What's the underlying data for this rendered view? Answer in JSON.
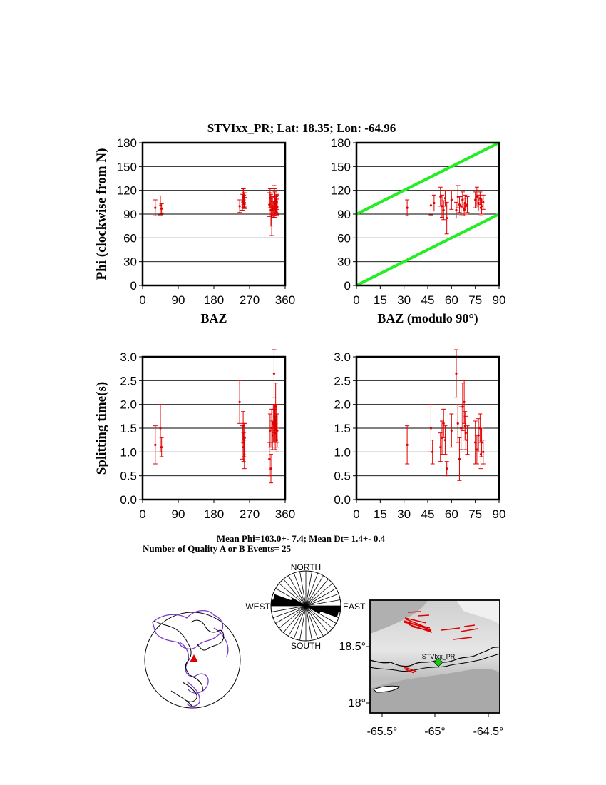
{
  "title": "STVIxx_PR; Lat:  18.35;  Lon:  -64.96",
  "stats_line1": "Mean Phi=103.0+-  7.4; Mean Dt=  1.4+-  0.4",
  "stats_line2": "Number of Quality A or B Events= 25",
  "colors": {
    "data": "#e00000",
    "guide": "#22ee22",
    "station": "#11cc11",
    "grid": "#000000",
    "globe_outline": "#7a3cc8"
  },
  "chart_data": [
    {
      "id": "phi-vs-baz",
      "type": "scatter",
      "ylabel": "Phi (clockwise from N)",
      "xlabel": "BAZ",
      "xlim": [
        0,
        360
      ],
      "ylim": [
        0,
        180
      ],
      "xticks": [
        "0",
        "90",
        "180",
        "270",
        "360"
      ],
      "yticks": [
        "0",
        "30",
        "60",
        "90",
        "120",
        "150",
        "180"
      ],
      "grid": "horizontal",
      "x": [
        32,
        45,
        48,
        245,
        252,
        254,
        255,
        256,
        257,
        258,
        320,
        322,
        324,
        326,
        328,
        330,
        332,
        333,
        334,
        335,
        336,
        337,
        338,
        339,
        340
      ],
      "y": [
        98,
        101,
        97,
        100,
        105,
        110,
        112,
        106,
        108,
        104,
        102,
        110,
        95,
        88,
        100,
        96,
        112,
        104,
        108,
        100,
        98,
        102,
        103,
        105,
        99
      ],
      "err": [
        10,
        12,
        6,
        8,
        10,
        12,
        10,
        8,
        9,
        7,
        15,
        12,
        20,
        25,
        12,
        10,
        14,
        18,
        10,
        12,
        8,
        10,
        12,
        9,
        10
      ]
    },
    {
      "id": "phi-vs-baz-mod90",
      "type": "scatter",
      "ylabel": "",
      "xlabel": "BAZ (modulo 90°)",
      "xlim": [
        0,
        90
      ],
      "ylim": [
        0,
        180
      ],
      "xticks": [
        "0",
        "15",
        "30",
        "45",
        "60",
        "75",
        "90"
      ],
      "yticks": [
        "0",
        "30",
        "60",
        "90",
        "120",
        "150",
        "180"
      ],
      "grid": "horizontal",
      "guide_lines": [
        {
          "x": [
            0,
            90
          ],
          "y": [
            0,
            90
          ]
        },
        {
          "x": [
            0,
            90
          ],
          "y": [
            90,
            180
          ]
        }
      ],
      "x": [
        32,
        47,
        49,
        53,
        54,
        55,
        56,
        57,
        60,
        63,
        64,
        65,
        66,
        67,
        68,
        68.5,
        69,
        70,
        75,
        76,
        77,
        78,
        79,
        80,
        78.5
      ],
      "y": [
        98,
        101,
        104,
        112,
        100,
        95,
        110,
        85,
        108,
        95,
        112,
        102,
        100,
        108,
        96,
        104,
        100,
        102,
        108,
        112,
        104,
        110,
        100,
        105,
        98
      ],
      "err": [
        10,
        12,
        10,
        12,
        14,
        12,
        10,
        20,
        12,
        10,
        14,
        10,
        12,
        10,
        8,
        10,
        10,
        10,
        10,
        12,
        10,
        8,
        10,
        9,
        10
      ]
    },
    {
      "id": "dt-vs-baz",
      "type": "scatter",
      "ylabel": "Splitting time(s)",
      "xlabel": "",
      "xlim": [
        0,
        360
      ],
      "ylim": [
        0,
        3.0
      ],
      "xticks": [
        "0",
        "90",
        "180",
        "270",
        "360"
      ],
      "yticks": [
        "0.0",
        "0.5",
        "1.0",
        "1.5",
        "2.0",
        "2.5",
        "3.0"
      ],
      "grid": "horizontal",
      "x": [
        32,
        45,
        48,
        245,
        252,
        254,
        255,
        256,
        257,
        258,
        320,
        322,
        324,
        326,
        328,
        330,
        332,
        333,
        334,
        335,
        336,
        337,
        338,
        339,
        340
      ],
      "y": [
        1.15,
        1.5,
        1.1,
        2.05,
        1.2,
        1.55,
        1.1,
        1.25,
        0.95,
        1.3,
        0.85,
        1.45,
        0.65,
        1.5,
        1.35,
        1.6,
        2.65,
        1.55,
        1.7,
        1.4,
        1.95,
        1.5,
        1.6,
        1.25,
        1.45
      ],
      "err": [
        0.4,
        0.5,
        0.2,
        0.45,
        0.35,
        0.3,
        0.3,
        0.35,
        0.3,
        0.3,
        0.35,
        0.35,
        0.3,
        0.4,
        0.3,
        0.4,
        0.5,
        0.35,
        0.3,
        0.35,
        0.5,
        0.3,
        0.4,
        0.25,
        0.35
      ]
    },
    {
      "id": "dt-vs-baz-mod90",
      "type": "scatter",
      "ylabel": "",
      "xlabel": "",
      "xlim": [
        0,
        90
      ],
      "ylim": [
        0,
        3.0
      ],
      "xticks": [
        "0",
        "15",
        "30",
        "45",
        "60",
        "75",
        "90"
      ],
      "yticks": [
        "0.0",
        "0.5",
        "1.0",
        "1.5",
        "2.0",
        "2.5",
        "3.0"
      ],
      "grid": "horizontal",
      "x": [
        32,
        47,
        48,
        53,
        54,
        55,
        56,
        57,
        60,
        63,
        64,
        65,
        66,
        67,
        68,
        68.5,
        69,
        70,
        75,
        76,
        77,
        78,
        79,
        80,
        78.5
      ],
      "y": [
        1.15,
        1.5,
        1.0,
        1.1,
        1.3,
        1.6,
        1.25,
        0.65,
        1.45,
        2.65,
        1.6,
        0.85,
        1.5,
        1.95,
        2.05,
        1.55,
        1.4,
        1.25,
        1.2,
        1.05,
        1.35,
        1.5,
        1.2,
        1.0,
        0.95
      ],
      "err": [
        0.4,
        0.5,
        0.25,
        0.3,
        0.35,
        0.3,
        0.3,
        0.15,
        0.35,
        0.5,
        0.4,
        0.45,
        0.45,
        0.5,
        0.45,
        0.3,
        0.35,
        0.3,
        0.45,
        0.3,
        0.35,
        0.3,
        0.3,
        0.25,
        0.3
      ]
    }
  ],
  "rose": {
    "labels": {
      "north": "NORTH",
      "south": "SOUTH",
      "east": "EAST",
      "west": "WEST"
    },
    "bin_degrees": 10,
    "filled_bins": [
      {
        "deg": 95,
        "frac": 1.0
      },
      {
        "deg": 105,
        "frac": 0.95
      },
      {
        "deg": 115,
        "frac": 0.45
      }
    ]
  },
  "map": {
    "lat_ticks": [
      "18.5°",
      "18°"
    ],
    "lon_ticks": [
      "-65.5°",
      "-65°",
      "-64.5°"
    ],
    "station_label": "STVIxx_PR"
  }
}
